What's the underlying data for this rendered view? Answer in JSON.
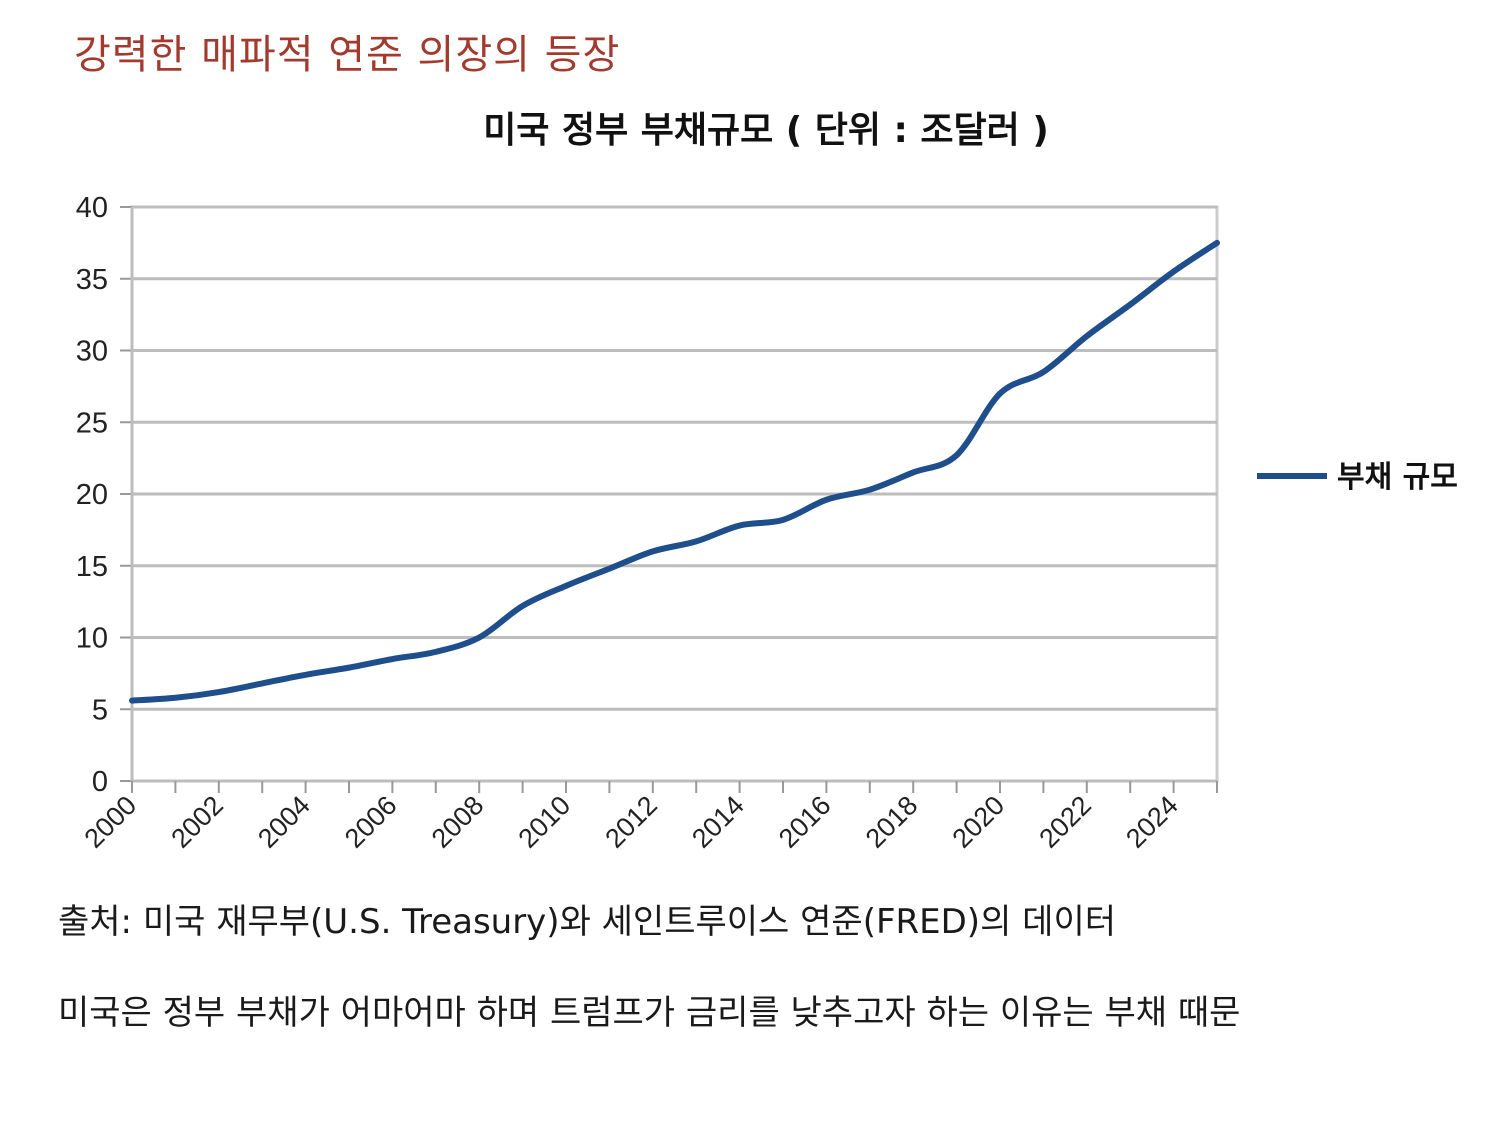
{
  "heading": "강력한 매파적 연준 의장의 등장",
  "source_note": "출처: 미국 재무부(U.S. Treasury)와 세인트루이스 연준(FRED)의 데이터",
  "commentary": "미국은 정부 부채가 어마어마 하며 트럼프가 금리를 낮추고자 하는 이유는 부채 때문",
  "chart_data": {
    "type": "line",
    "title": "미국 정부 부채규모 ( 단위 :  조달러 )",
    "xlabel": "",
    "ylabel": "",
    "ylim": [
      0,
      40
    ],
    "yticks": [
      0,
      5,
      10,
      15,
      20,
      25,
      30,
      35,
      40
    ],
    "xlim": [
      2000,
      2025
    ],
    "xtick_labels": [
      "2000",
      "2002",
      "2004",
      "2006",
      "2008",
      "2010",
      "2012",
      "2014",
      "2016",
      "2018",
      "2020",
      "2022",
      "2024"
    ],
    "grid": true,
    "legend_position": "right",
    "series": [
      {
        "name": "부채 규모",
        "color": "#1f4e8c",
        "x": [
          2000,
          2001,
          2002,
          2003,
          2004,
          2005,
          2006,
          2007,
          2008,
          2009,
          2010,
          2011,
          2012,
          2013,
          2014,
          2015,
          2016,
          2017,
          2018,
          2019,
          2020,
          2021,
          2022,
          2023,
          2024,
          2025
        ],
        "y": [
          5.6,
          5.8,
          6.2,
          6.8,
          7.4,
          7.9,
          8.5,
          9.0,
          10.0,
          12.2,
          13.6,
          14.8,
          16.0,
          16.7,
          17.8,
          18.2,
          19.6,
          20.3,
          21.5,
          22.7,
          27.0,
          28.5,
          31.0,
          33.2,
          35.5,
          37.5
        ]
      }
    ]
  }
}
